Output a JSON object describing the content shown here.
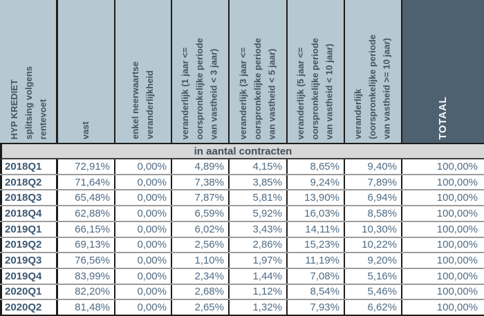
{
  "table": {
    "corner_header": "HYP KREDIET\nsplitsing volgens\nrentevoet",
    "columns": [
      "vast",
      "enkel neerwaartse\nveranderlijkheid",
      "veranderlijk (1 jaar <=\noorspronkelijke periode\nvan vastheid < 3 jaar)",
      "veranderlijk (3 jaar <=\noorspronkelijke periode\nvan vastheid < 5 jaar)",
      "veranderlijk (5 jaar <=\noorspronkelijke periode\nvan vastheid < 10 jaar)",
      "veranderlijk\n(oorspronkelijke periode\nvan vastheid >= 10 jaar)"
    ],
    "total_column": "TOTAAL",
    "section_header": "in aantal contracten",
    "rows": [
      {
        "quarter": "2018Q1",
        "values": [
          "72,91%",
          "0,00%",
          "4,89%",
          "4,15%",
          "8,65%",
          "9,40%"
        ],
        "total": "100,00%"
      },
      {
        "quarter": "2018Q2",
        "values": [
          "71,64%",
          "0,00%",
          "7,38%",
          "3,85%",
          "9,24%",
          "7,89%"
        ],
        "total": "100,00%"
      },
      {
        "quarter": "2018Q3",
        "values": [
          "65,48%",
          "0,00%",
          "7,87%",
          "5,81%",
          "13,90%",
          "6,94%"
        ],
        "total": "100,00%"
      },
      {
        "quarter": "2018Q4",
        "values": [
          "62,88%",
          "0,00%",
          "6,59%",
          "5,92%",
          "16,03%",
          "8,58%"
        ],
        "total": "100,00%"
      },
      {
        "quarter": "2019Q1",
        "values": [
          "66,15%",
          "0,00%",
          "6,02%",
          "3,43%",
          "14,11%",
          "10,30%"
        ],
        "total": "100,00%"
      },
      {
        "quarter": "2019Q2",
        "values": [
          "69,13%",
          "0,00%",
          "2,56%",
          "2,86%",
          "15,23%",
          "10,22%"
        ],
        "total": "100,00%"
      },
      {
        "quarter": "2019Q3",
        "values": [
          "76,56%",
          "0,00%",
          "1,10%",
          "1,97%",
          "11,19%",
          "9,20%"
        ],
        "total": "100,00%"
      },
      {
        "quarter": "2019Q4",
        "values": [
          "83,99%",
          "0,00%",
          "2,34%",
          "1,44%",
          "7,08%",
          "5,16%"
        ],
        "total": "100,00%"
      },
      {
        "quarter": "2020Q1",
        "values": [
          "82,20%",
          "0,00%",
          "2,68%",
          "1,12%",
          "8,54%",
          "5,46%"
        ],
        "total": "100,00%"
      },
      {
        "quarter": "2020Q2",
        "values": [
          "81,48%",
          "0,00%",
          "2,65%",
          "1,32%",
          "7,93%",
          "6,62%"
        ],
        "total": "100,00%"
      }
    ],
    "colors": {
      "header_bg": "#b6c8d1",
      "total_header_bg": "#4e6170",
      "section_bg": "#d8d8d8",
      "header_text": "#46545f",
      "label_text": "#3d5872",
      "value_text": "#4e6b84"
    }
  }
}
